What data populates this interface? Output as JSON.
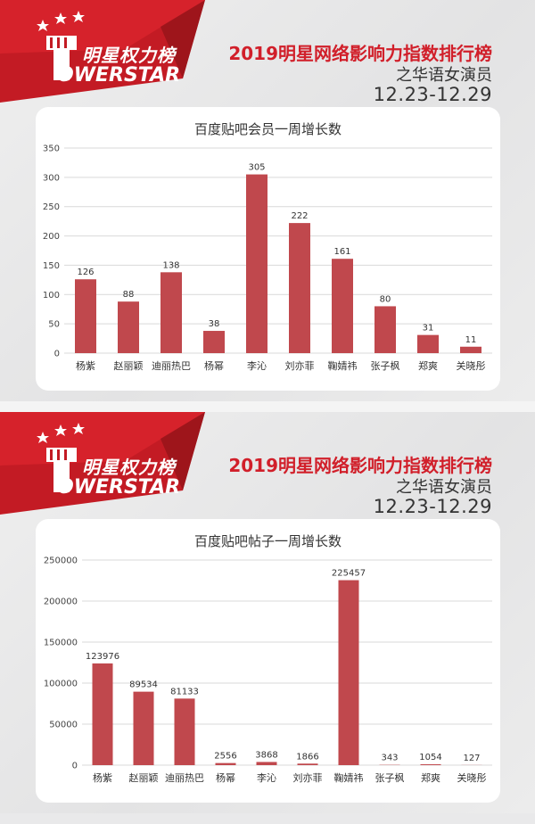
{
  "panels": [
    {
      "brand": {
        "cn": "明星权力榜",
        "en": "OWERSTAR"
      },
      "header": {
        "title": "2019明星网络影响力指数排行榜",
        "subtitle": "之华语女演员",
        "date": "12.23-12.29"
      }
    },
    {
      "brand": {
        "cn": "明星权力榜",
        "en": "OWERSTAR"
      },
      "header": {
        "title": "2019明星网络影响力指数排行榜",
        "subtitle": "之华语女演员",
        "date": "12.23-12.29"
      }
    }
  ],
  "colors": {
    "bar": "#c0484d",
    "brand_red": "#d11f2a",
    "grid": "#d9d9d9"
  },
  "chart_data": [
    {
      "type": "bar",
      "title": "百度贴吧会员一周增长数",
      "categories": [
        "杨紫",
        "赵丽颖",
        "迪丽热巴",
        "杨幂",
        "李沁",
        "刘亦菲",
        "鞠婧祎",
        "张子枫",
        "郑爽",
        "关晓彤"
      ],
      "values": [
        126,
        88,
        138,
        38,
        305,
        222,
        161,
        80,
        31,
        11
      ],
      "ylim": [
        0,
        350
      ],
      "yticks": [
        0,
        50,
        100,
        150,
        200,
        250,
        300,
        350
      ],
      "grid": true,
      "data_labels": true
    },
    {
      "type": "bar",
      "title": "百度贴吧帖子一周增长数",
      "categories": [
        "杨紫",
        "赵丽颖",
        "迪丽热巴",
        "杨幂",
        "李沁",
        "刘亦菲",
        "鞠婧祎",
        "张子枫",
        "郑爽",
        "关晓彤"
      ],
      "values": [
        123976,
        89534,
        81133,
        2556,
        3868,
        1866,
        225457,
        343,
        1054,
        127
      ],
      "ylim": [
        0,
        250000
      ],
      "yticks": [
        0,
        50000,
        100000,
        150000,
        200000,
        250000
      ],
      "grid": true,
      "data_labels": true
    }
  ]
}
